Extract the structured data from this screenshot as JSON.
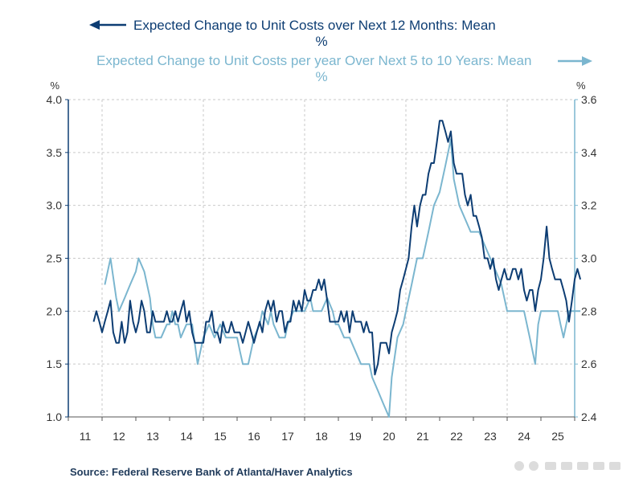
{
  "chart_data": {
    "type": "line",
    "legend": {
      "series1_line1": "Expected Change to Unit Costs over Next 12 Months: Mean",
      "series1_line2": "%",
      "series2_line1": "Expected Change to Unit Costs per year Over Next 5 to 10 Years: Mean",
      "series2_line2": "%"
    },
    "left_axis": {
      "unit": "%",
      "ylim": [
        1.0,
        4.0
      ],
      "ticks": [
        "1.0",
        "1.5",
        "2.0",
        "2.5",
        "3.0",
        "3.5",
        "4.0"
      ]
    },
    "right_axis": {
      "unit": "%",
      "ylim": [
        2.4,
        3.6
      ],
      "ticks": [
        "2.4",
        "2.6",
        "2.8",
        "3.0",
        "3.2",
        "3.4",
        "3.6"
      ]
    },
    "x_axis": {
      "xlim": [
        2011.0,
        2026.0
      ],
      "ticks": [
        "11",
        "12",
        "13",
        "14",
        "15",
        "16",
        "17",
        "18",
        "19",
        "20",
        "21",
        "22",
        "23",
        "24",
        "25"
      ]
    },
    "grid": true,
    "series": [
      {
        "name": "Expected Change to Unit Costs over Next 12 Months: Mean",
        "axis": "left",
        "color": "#0d3d73",
        "points": [
          [
            2011.75,
            1.9
          ],
          [
            2011.83,
            2.0
          ],
          [
            2011.92,
            1.9
          ],
          [
            2012.0,
            1.8
          ],
          [
            2012.08,
            1.9
          ],
          [
            2012.17,
            2.0
          ],
          [
            2012.25,
            2.1
          ],
          [
            2012.33,
            1.8
          ],
          [
            2012.42,
            1.7
          ],
          [
            2012.5,
            1.7
          ],
          [
            2012.58,
            1.9
          ],
          [
            2012.67,
            1.7
          ],
          [
            2012.75,
            1.8
          ],
          [
            2012.83,
            2.1
          ],
          [
            2012.92,
            1.9
          ],
          [
            2013.0,
            1.8
          ],
          [
            2013.08,
            1.9
          ],
          [
            2013.17,
            2.1
          ],
          [
            2013.25,
            2.0
          ],
          [
            2013.33,
            1.8
          ],
          [
            2013.42,
            1.8
          ],
          [
            2013.5,
            2.0
          ],
          [
            2013.58,
            1.9
          ],
          [
            2013.67,
            1.9
          ],
          [
            2013.75,
            1.9
          ],
          [
            2013.83,
            1.9
          ],
          [
            2013.92,
            2.0
          ],
          [
            2014.0,
            1.9
          ],
          [
            2014.08,
            1.9
          ],
          [
            2014.17,
            2.0
          ],
          [
            2014.25,
            1.9
          ],
          [
            2014.33,
            2.0
          ],
          [
            2014.42,
            2.1
          ],
          [
            2014.5,
            1.9
          ],
          [
            2014.58,
            2.0
          ],
          [
            2014.67,
            1.8
          ],
          [
            2014.75,
            1.7
          ],
          [
            2014.83,
            1.7
          ],
          [
            2014.92,
            1.7
          ],
          [
            2015.0,
            1.7
          ],
          [
            2015.08,
            1.9
          ],
          [
            2015.17,
            1.9
          ],
          [
            2015.25,
            2.0
          ],
          [
            2015.33,
            1.8
          ],
          [
            2015.42,
            1.8
          ],
          [
            2015.5,
            1.7
          ],
          [
            2015.58,
            1.9
          ],
          [
            2015.67,
            1.8
          ],
          [
            2015.75,
            1.8
          ],
          [
            2015.83,
            1.9
          ],
          [
            2015.92,
            1.8
          ],
          [
            2016.0,
            1.8
          ],
          [
            2016.08,
            1.8
          ],
          [
            2016.17,
            1.7
          ],
          [
            2016.25,
            1.8
          ],
          [
            2016.33,
            1.9
          ],
          [
            2016.42,
            1.8
          ],
          [
            2016.5,
            1.7
          ],
          [
            2016.58,
            1.8
          ],
          [
            2016.67,
            1.9
          ],
          [
            2016.75,
            1.8
          ],
          [
            2016.83,
            2.0
          ],
          [
            2016.92,
            2.1
          ],
          [
            2017.0,
            2.0
          ],
          [
            2017.08,
            2.1
          ],
          [
            2017.17,
            1.9
          ],
          [
            2017.25,
            2.0
          ],
          [
            2017.33,
            2.0
          ],
          [
            2017.42,
            1.8
          ],
          [
            2017.5,
            1.9
          ],
          [
            2017.58,
            1.9
          ],
          [
            2017.67,
            2.1
          ],
          [
            2017.75,
            2.0
          ],
          [
            2017.83,
            2.1
          ],
          [
            2017.92,
            2.0
          ],
          [
            2018.0,
            2.2
          ],
          [
            2018.08,
            2.1
          ],
          [
            2018.17,
            2.1
          ],
          [
            2018.25,
            2.2
          ],
          [
            2018.33,
            2.2
          ],
          [
            2018.42,
            2.3
          ],
          [
            2018.5,
            2.2
          ],
          [
            2018.58,
            2.3
          ],
          [
            2018.67,
            2.1
          ],
          [
            2018.75,
            1.9
          ],
          [
            2018.83,
            1.9
          ],
          [
            2018.92,
            1.9
          ],
          [
            2019.0,
            1.9
          ],
          [
            2019.08,
            2.0
          ],
          [
            2019.17,
            1.9
          ],
          [
            2019.25,
            2.0
          ],
          [
            2019.33,
            1.8
          ],
          [
            2019.42,
            2.0
          ],
          [
            2019.5,
            1.9
          ],
          [
            2019.58,
            1.9
          ],
          [
            2019.67,
            1.9
          ],
          [
            2019.75,
            1.8
          ],
          [
            2019.83,
            1.9
          ],
          [
            2019.92,
            1.8
          ],
          [
            2020.0,
            1.8
          ],
          [
            2020.08,
            1.4
          ],
          [
            2020.17,
            1.5
          ],
          [
            2020.25,
            1.7
          ],
          [
            2020.33,
            1.7
          ],
          [
            2020.42,
            1.7
          ],
          [
            2020.5,
            1.6
          ],
          [
            2020.58,
            1.8
          ],
          [
            2020.67,
            1.9
          ],
          [
            2020.75,
            2.0
          ],
          [
            2020.83,
            2.2
          ],
          [
            2020.92,
            2.3
          ],
          [
            2021.0,
            2.4
          ],
          [
            2021.08,
            2.5
          ],
          [
            2021.17,
            2.8
          ],
          [
            2021.25,
            3.0
          ],
          [
            2021.33,
            2.8
          ],
          [
            2021.42,
            3.0
          ],
          [
            2021.5,
            3.1
          ],
          [
            2021.58,
            3.1
          ],
          [
            2021.67,
            3.3
          ],
          [
            2021.75,
            3.4
          ],
          [
            2021.83,
            3.4
          ],
          [
            2021.92,
            3.6
          ],
          [
            2022.0,
            3.8
          ],
          [
            2022.08,
            3.8
          ],
          [
            2022.17,
            3.7
          ],
          [
            2022.25,
            3.6
          ],
          [
            2022.33,
            3.7
          ],
          [
            2022.42,
            3.4
          ],
          [
            2022.5,
            3.3
          ],
          [
            2022.58,
            3.3
          ],
          [
            2022.67,
            3.3
          ],
          [
            2022.75,
            3.1
          ],
          [
            2022.83,
            3.0
          ],
          [
            2022.92,
            3.1
          ],
          [
            2023.0,
            2.9
          ],
          [
            2023.08,
            2.9
          ],
          [
            2023.17,
            2.8
          ],
          [
            2023.25,
            2.7
          ],
          [
            2023.33,
            2.5
          ],
          [
            2023.42,
            2.5
          ],
          [
            2023.5,
            2.4
          ],
          [
            2023.58,
            2.5
          ],
          [
            2023.67,
            2.3
          ],
          [
            2023.75,
            2.2
          ],
          [
            2023.83,
            2.3
          ],
          [
            2023.92,
            2.4
          ],
          [
            2024.0,
            2.3
          ],
          [
            2024.08,
            2.3
          ],
          [
            2024.17,
            2.4
          ],
          [
            2024.25,
            2.4
          ],
          [
            2024.33,
            2.3
          ],
          [
            2024.42,
            2.4
          ],
          [
            2024.5,
            2.2
          ],
          [
            2024.58,
            2.1
          ],
          [
            2024.67,
            2.2
          ],
          [
            2024.75,
            2.2
          ],
          [
            2024.83,
            2.0
          ],
          [
            2024.92,
            2.2
          ],
          [
            2025.0,
            2.3
          ],
          [
            2025.08,
            2.5
          ],
          [
            2025.17,
            2.8
          ],
          [
            2025.25,
            2.5
          ],
          [
            2025.33,
            2.4
          ],
          [
            2025.42,
            2.3
          ],
          [
            2025.5,
            2.3
          ],
          [
            2025.58,
            2.3
          ],
          [
            2025.67,
            2.2
          ],
          [
            2025.75,
            2.1
          ],
          [
            2025.83,
            1.9
          ],
          [
            2025.92,
            2.1
          ],
          [
            2026.0,
            2.3
          ],
          [
            2026.08,
            2.4
          ],
          [
            2026.17,
            2.3
          ]
        ]
      },
      {
        "name": "Expected Change to Unit Costs per year Over Next 5 to 10 Years: Mean",
        "axis": "right",
        "color": "#7bb6cf",
        "points": [
          [
            2012.08,
            2.9
          ],
          [
            2012.25,
            3.0
          ],
          [
            2012.42,
            2.85
          ],
          [
            2012.5,
            2.8
          ],
          [
            2012.67,
            2.85
          ],
          [
            2012.83,
            2.9
          ],
          [
            2013.0,
            2.95
          ],
          [
            2013.08,
            3.0
          ],
          [
            2013.25,
            2.95
          ],
          [
            2013.42,
            2.85
          ],
          [
            2013.5,
            2.75
          ],
          [
            2013.58,
            2.7
          ],
          [
            2013.75,
            2.7
          ],
          [
            2013.92,
            2.75
          ],
          [
            2014.0,
            2.75
          ],
          [
            2014.08,
            2.8
          ],
          [
            2014.17,
            2.75
          ],
          [
            2014.25,
            2.75
          ],
          [
            2014.33,
            2.7
          ],
          [
            2014.5,
            2.75
          ],
          [
            2014.67,
            2.75
          ],
          [
            2014.83,
            2.6
          ],
          [
            2015.0,
            2.7
          ],
          [
            2015.17,
            2.75
          ],
          [
            2015.33,
            2.7
          ],
          [
            2015.5,
            2.75
          ],
          [
            2015.67,
            2.7
          ],
          [
            2015.83,
            2.7
          ],
          [
            2016.0,
            2.7
          ],
          [
            2016.08,
            2.65
          ],
          [
            2016.17,
            2.6
          ],
          [
            2016.33,
            2.6
          ],
          [
            2016.5,
            2.7
          ],
          [
            2016.67,
            2.75
          ],
          [
            2016.75,
            2.8
          ],
          [
            2016.92,
            2.75
          ],
          [
            2017.0,
            2.8
          ],
          [
            2017.08,
            2.75
          ],
          [
            2017.25,
            2.7
          ],
          [
            2017.42,
            2.7
          ],
          [
            2017.5,
            2.75
          ],
          [
            2017.67,
            2.8
          ],
          [
            2017.83,
            2.8
          ],
          [
            2018.0,
            2.8
          ],
          [
            2018.17,
            2.85
          ],
          [
            2018.25,
            2.8
          ],
          [
            2018.33,
            2.8
          ],
          [
            2018.5,
            2.8
          ],
          [
            2018.67,
            2.85
          ],
          [
            2018.83,
            2.8
          ],
          [
            2018.92,
            2.75
          ],
          [
            2019.0,
            2.75
          ],
          [
            2019.17,
            2.7
          ],
          [
            2019.33,
            2.7
          ],
          [
            2019.5,
            2.65
          ],
          [
            2019.67,
            2.6
          ],
          [
            2019.75,
            2.6
          ],
          [
            2019.92,
            2.6
          ],
          [
            2020.0,
            2.55
          ],
          [
            2020.17,
            2.5
          ],
          [
            2020.33,
            2.45
          ],
          [
            2020.5,
            2.4
          ],
          [
            2020.58,
            2.55
          ],
          [
            2020.75,
            2.7
          ],
          [
            2020.92,
            2.75
          ],
          [
            2021.0,
            2.8
          ],
          [
            2021.17,
            2.9
          ],
          [
            2021.33,
            3.0
          ],
          [
            2021.5,
            3.0
          ],
          [
            2021.67,
            3.1
          ],
          [
            2021.75,
            3.15
          ],
          [
            2021.83,
            3.2
          ],
          [
            2022.0,
            3.25
          ],
          [
            2022.17,
            3.35
          ],
          [
            2022.25,
            3.4
          ],
          [
            2022.33,
            3.45
          ],
          [
            2022.42,
            3.3
          ],
          [
            2022.5,
            3.25
          ],
          [
            2022.58,
            3.2
          ],
          [
            2022.75,
            3.15
          ],
          [
            2022.92,
            3.1
          ],
          [
            2023.0,
            3.1
          ],
          [
            2023.17,
            3.1
          ],
          [
            2023.33,
            3.05
          ],
          [
            2023.5,
            3.0
          ],
          [
            2023.67,
            2.95
          ],
          [
            2023.83,
            2.9
          ],
          [
            2024.0,
            2.8
          ],
          [
            2024.17,
            2.8
          ],
          [
            2024.33,
            2.8
          ],
          [
            2024.5,
            2.8
          ],
          [
            2024.67,
            2.7
          ],
          [
            2024.75,
            2.65
          ],
          [
            2024.83,
            2.6
          ],
          [
            2024.92,
            2.75
          ],
          [
            2025.0,
            2.8
          ],
          [
            2025.17,
            2.8
          ],
          [
            2025.33,
            2.8
          ],
          [
            2025.5,
            2.8
          ],
          [
            2025.58,
            2.75
          ],
          [
            2025.67,
            2.7
          ],
          [
            2025.75,
            2.75
          ],
          [
            2025.83,
            2.8
          ],
          [
            2026.0,
            2.8
          ],
          [
            2026.17,
            2.8
          ]
        ]
      }
    ]
  },
  "source": "Source:  Federal Reserve Bank of Atlanta/Haver Analytics"
}
